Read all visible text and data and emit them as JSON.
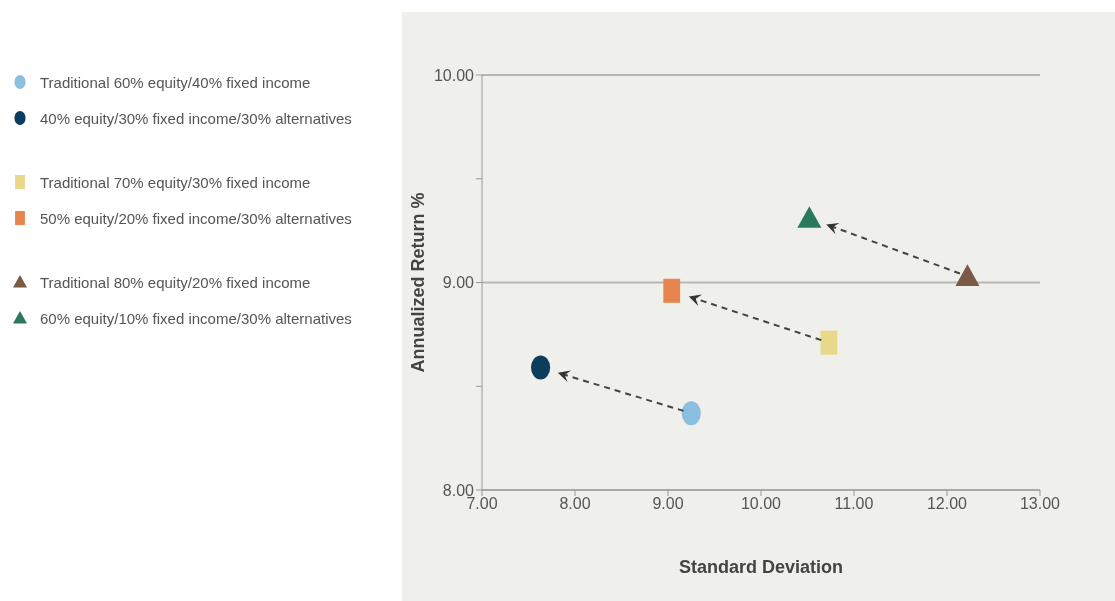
{
  "chart_data": {
    "type": "scatter",
    "xlabel": "Standard Deviation",
    "ylabel": "Annualized  Return %",
    "xlim": [
      7,
      13
    ],
    "xticks": [
      {
        "value": 7,
        "label": "7.00"
      },
      {
        "value": 8,
        "label": "8.00"
      },
      {
        "value": 9,
        "label": "9.00"
      },
      {
        "value": 10,
        "label": "10.00"
      },
      {
        "value": 11,
        "label": "11.00"
      },
      {
        "value": 12,
        "label": "12.00"
      },
      {
        "value": 13,
        "label": "13.00"
      }
    ],
    "ylim": [
      8,
      10
    ],
    "yticks": [
      {
        "value": 8,
        "label": "8.00"
      },
      {
        "value": 8.5,
        "label": null
      },
      {
        "value": 9,
        "label": "9.00"
      },
      {
        "value": 9.5,
        "label": null
      },
      {
        "value": 10,
        "label": "10.00"
      }
    ],
    "grid": "y",
    "legend": "left",
    "series": [
      {
        "name": "Traditional 60% equity/40% fixed income",
        "color": "#8bbfe0",
        "marker": "circle",
        "x": [
          9.25
        ],
        "values": [
          8.37
        ]
      },
      {
        "name": "40% equity/30% fixed income/30% alternatives",
        "color": "#0d3d5c",
        "marker": "circle",
        "x": [
          7.63
        ],
        "values": [
          8.59
        ]
      },
      {
        "name": "Traditional 70% equity/30% fixed income",
        "color": "#e8d88a",
        "marker": "square",
        "x": [
          10.73
        ],
        "values": [
          8.71
        ]
      },
      {
        "name": "50% equity/20% fixed income/30% alternatives",
        "color": "#e8844e",
        "marker": "square",
        "x": [
          9.04
        ],
        "values": [
          8.96
        ]
      },
      {
        "name": "Traditional 80% equity/20% fixed income",
        "color": "#7a5a44",
        "marker": "triangle",
        "x": [
          12.22
        ],
        "values": [
          9.03
        ]
      },
      {
        "name": "60% equity/10% fixed income/30% alternatives",
        "color": "#2a7a5a",
        "marker": "triangle",
        "x": [
          10.52
        ],
        "values": [
          9.31
        ]
      }
    ]
  }
}
